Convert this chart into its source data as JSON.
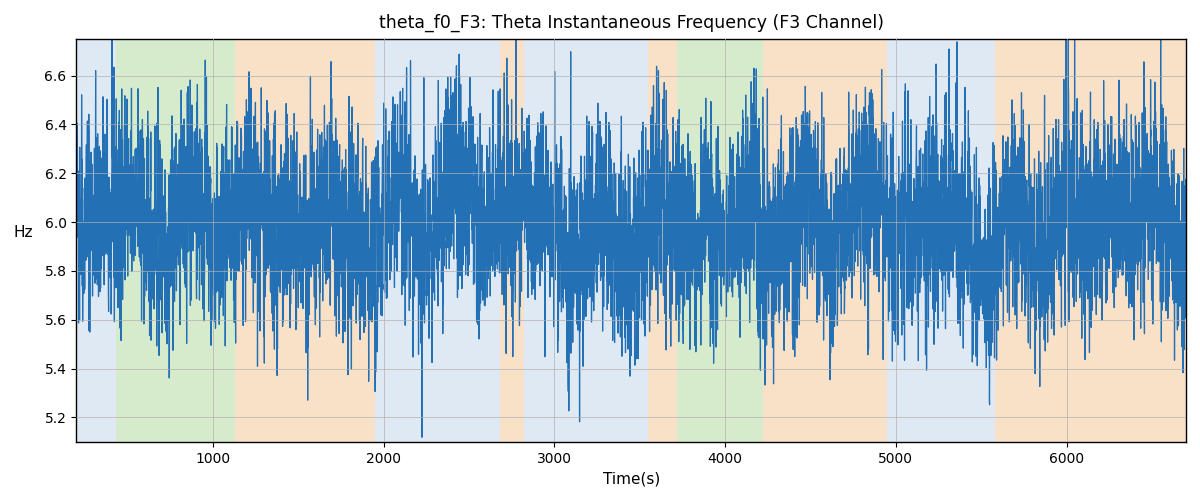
{
  "title": "theta_f0_F3: Theta Instantaneous Frequency (F3 Channel)",
  "xlabel": "Time(s)",
  "ylabel": "Hz",
  "xlim": [
    200,
    6700
  ],
  "ylim": [
    5.1,
    6.75
  ],
  "yticks": [
    5.2,
    5.4,
    5.6,
    5.8,
    6.0,
    6.2,
    6.4,
    6.6
  ],
  "background_regions": [
    {
      "start": 200,
      "end": 430,
      "color": "#c5d8ec"
    },
    {
      "start": 430,
      "end": 1130,
      "color": "#b5d9a3"
    },
    {
      "start": 1130,
      "end": 1950,
      "color": "#f5ca99"
    },
    {
      "start": 1950,
      "end": 2680,
      "color": "#c5d8ec"
    },
    {
      "start": 2680,
      "end": 2820,
      "color": "#f5ca99"
    },
    {
      "start": 2820,
      "end": 3550,
      "color": "#c5d8ec"
    },
    {
      "start": 3550,
      "end": 3720,
      "color": "#f5ca99"
    },
    {
      "start": 3720,
      "end": 4220,
      "color": "#b5d9a3"
    },
    {
      "start": 4220,
      "end": 4950,
      "color": "#f5ca99"
    },
    {
      "start": 4950,
      "end": 5580,
      "color": "#c5d8ec"
    },
    {
      "start": 5580,
      "end": 5740,
      "color": "#f5ca99"
    },
    {
      "start": 5740,
      "end": 6700,
      "color": "#f5ca99"
    }
  ],
  "line_color": "#2470b4",
  "line_width": 0.9,
  "grid": true,
  "grid_color": "#b0b0b0",
  "grid_alpha": 0.7,
  "background_alpha": 0.55,
  "seed": 42,
  "n_points": 6500,
  "t_start": 200,
  "t_end": 6700,
  "base_freq": 6.0
}
